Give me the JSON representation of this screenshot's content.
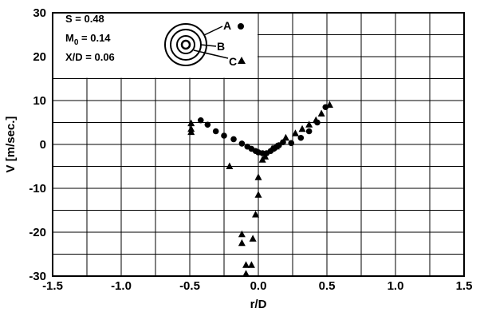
{
  "chart_data": {
    "type": "scatter",
    "xlabel": "r/D",
    "ylabel": "V [m/sec.]",
    "xlim": [
      -1.5,
      1.5
    ],
    "ylim": [
      -30,
      30
    ],
    "x_ticks": [
      -1.5,
      -1.0,
      -0.5,
      0.0,
      0.5,
      1.0,
      1.5
    ],
    "x_tick_labels": [
      "-1.5",
      "-1.0",
      "-0.5",
      "0.0",
      "0.5",
      "1.0",
      "1.5"
    ],
    "y_ticks": [
      -30,
      -20,
      -10,
      0,
      10,
      20,
      30
    ],
    "y_tick_labels": [
      "-30",
      "-20",
      "-10",
      "0",
      "10",
      "20",
      "30"
    ],
    "grid": true,
    "annotations": [
      "S = 0.48",
      "M0 = 0.14",
      "X/D = 0.06"
    ],
    "legend_placement": "top-center",
    "series": [
      {
        "name": "A",
        "marker": "circle",
        "points": [
          [
            -0.42,
            5.5
          ],
          [
            -0.37,
            4.5
          ],
          [
            -0.31,
            3.0
          ],
          [
            -0.25,
            2.0
          ],
          [
            -0.18,
            1.2
          ],
          [
            -0.12,
            0.2
          ],
          [
            -0.08,
            -0.5
          ],
          [
            -0.05,
            -1.0
          ],
          [
            -0.02,
            -1.5
          ],
          [
            0.0,
            -1.8
          ],
          [
            0.03,
            -2.0
          ],
          [
            0.06,
            -2.0
          ],
          [
            0.09,
            -1.5
          ],
          [
            0.12,
            -0.8
          ],
          [
            0.15,
            -0.2
          ],
          [
            0.18,
            0.5
          ],
          [
            0.24,
            0.3
          ],
          [
            0.31,
            1.5
          ],
          [
            0.37,
            3.0
          ],
          [
            0.43,
            5.0
          ],
          [
            0.49,
            8.5
          ]
        ]
      },
      {
        "name": "C",
        "marker": "triangle",
        "points": [
          [
            -0.49,
            2.8
          ],
          [
            -0.49,
            3.5
          ],
          [
            -0.49,
            4.8
          ],
          [
            -0.21,
            -5.0
          ],
          [
            -0.12,
            -20.5
          ],
          [
            -0.12,
            -22.5
          ],
          [
            -0.09,
            -27.5
          ],
          [
            -0.09,
            -29.5
          ],
          [
            -0.05,
            -27.5
          ],
          [
            -0.04,
            -21.5
          ],
          [
            -0.02,
            -16.0
          ],
          [
            0.0,
            -11.5
          ],
          [
            0.0,
            -7.5
          ],
          [
            0.03,
            -3.5
          ],
          [
            0.05,
            -2.8
          ],
          [
            0.1,
            -1.0
          ],
          [
            0.13,
            -0.5
          ],
          [
            0.2,
            1.5
          ],
          [
            0.27,
            2.5
          ],
          [
            0.32,
            3.5
          ],
          [
            0.37,
            4.5
          ],
          [
            0.42,
            5.5
          ],
          [
            0.46,
            7.0
          ],
          [
            0.52,
            9.0
          ]
        ]
      }
    ]
  },
  "annotation_lines": {
    "s": "S = 0.48",
    "m_main": "M",
    "m_sub": "0",
    "m_rest": " = 0.14",
    "xd": "X/D = 0.06"
  },
  "legend": {
    "a": "A",
    "b": "B",
    "c": "C"
  }
}
